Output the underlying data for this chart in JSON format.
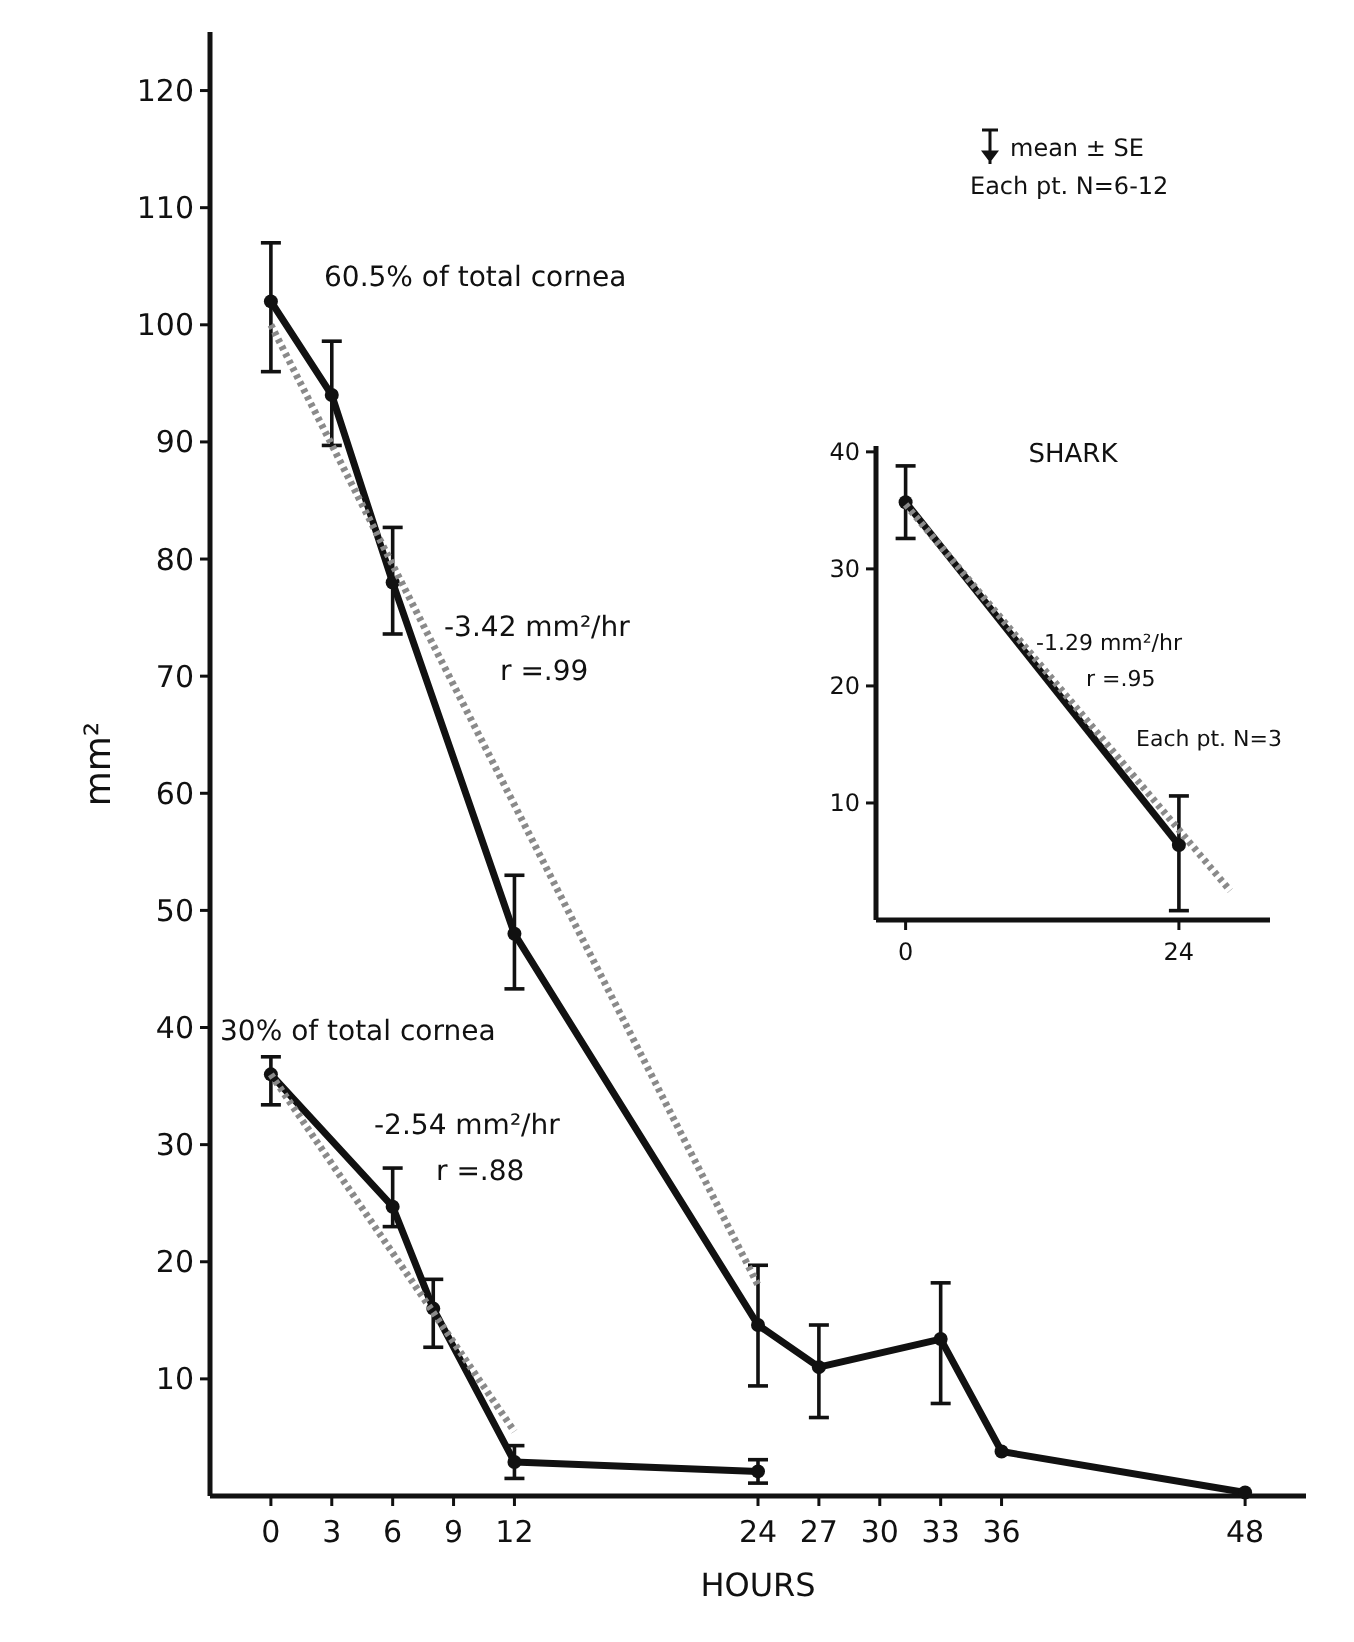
{
  "chart_data": [
    {
      "type": "line",
      "xlabel": "HOURS",
      "ylabel": "mm²",
      "xlim": [
        -3,
        51
      ],
      "ylim": [
        0,
        125
      ],
      "xticks": [
        0,
        3,
        6,
        9,
        12,
        24,
        27,
        30,
        33,
        36,
        48
      ],
      "yticks": [
        10,
        20,
        30,
        40,
        50,
        60,
        70,
        80,
        90,
        100,
        110,
        120
      ],
      "marker": "circle",
      "grid": false,
      "series": [
        {
          "color": "#111111",
          "x": [
            0,
            3,
            6,
            12,
            24,
            27,
            33,
            36,
            48
          ],
          "values": [
            102,
            94,
            78,
            48,
            14.6,
            11,
            13.4,
            3.8,
            0.3
          ],
          "errors": [
            [
              96,
              107
            ],
            [
              89.7,
              98.6
            ],
            [
              73.6,
              82.7
            ],
            [
              43.3,
              53
            ],
            [
              9.4,
              19.7
            ],
            [
              6.7,
              14.6
            ],
            [
              7.9,
              18.2
            ],
            null,
            null
          ]
        },
        {
          "type": "line",
          "color": "#8a8a8a",
          "line_style": "dotted",
          "marker": "none",
          "x": [
            0,
            24
          ],
          "values": [
            100,
            18
          ]
        },
        {
          "color": "#111111",
          "x": [
            0,
            6,
            8,
            12,
            24
          ],
          "values": [
            36,
            24.7,
            16,
            2.9,
            2.1
          ],
          "errors": [
            [
              33.4,
              37.5
            ],
            [
              23,
              28
            ],
            [
              12.7,
              18.5
            ],
            [
              1.5,
              4.3
            ],
            [
              1.1,
              3.1
            ]
          ]
        },
        {
          "type": "line",
          "color": "#8a8a8a",
          "line_style": "dotted",
          "marker": "none",
          "x": [
            0,
            12
          ],
          "values": [
            36,
            5.5
          ]
        }
      ],
      "annotations": [
        "60.5% of total cornea",
        "-3.42 mm²/hr",
        "r =.99",
        "30% of total cornea",
        "-2.54 mm²/hr",
        "r =.88",
        "mean ± SE",
        "Each pt. N=6-12"
      ]
    },
    {
      "type": "line",
      "title": "SHARK",
      "xlim": [
        -2.6,
        32
      ],
      "ylim": [
        0,
        40.5
      ],
      "xticks": [
        0,
        24
      ],
      "yticks": [
        10,
        20,
        30,
        40
      ],
      "marker": "circle",
      "grid": false,
      "series": [
        {
          "color": "#111111",
          "x": [
            0,
            24
          ],
          "values": [
            35.7,
            6.4
          ],
          "errors": [
            [
              32.6,
              38.8
            ],
            [
              0.8,
              10.6
            ]
          ]
        },
        {
          "type": "line",
          "color": "#8a8a8a",
          "line_style": "dotted",
          "marker": "none",
          "x": [
            0,
            28.5
          ],
          "values": [
            35.5,
            2.5
          ]
        }
      ],
      "annotations": [
        "-1.29 mm²/hr",
        "r =.95",
        "Each pt. N=3"
      ]
    }
  ]
}
